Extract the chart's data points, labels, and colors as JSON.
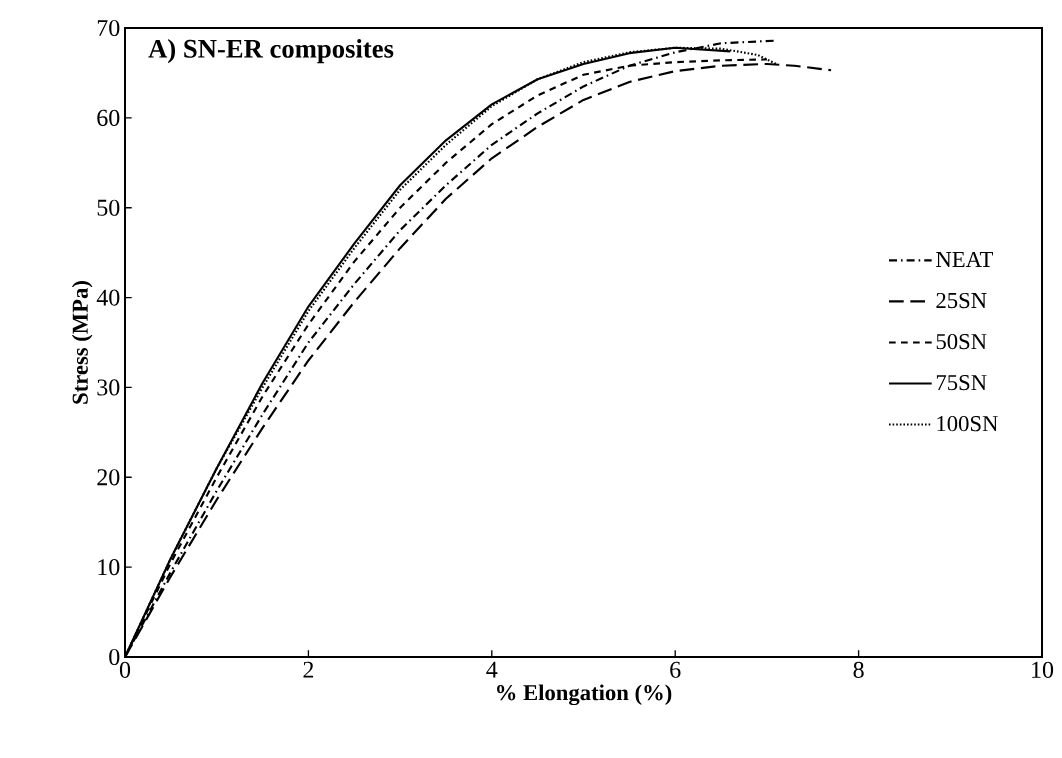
{
  "chart_data": {
    "type": "line",
    "title": "A) SN-ER composites",
    "xlabel": "% Elongation (%)",
    "ylabel": "Stress (MPa)",
    "xlim": [
      0,
      10
    ],
    "ylim": [
      0,
      70
    ],
    "xticks": [
      0,
      2,
      4,
      6,
      8,
      10
    ],
    "yticks": [
      0,
      10,
      20,
      30,
      40,
      50,
      60,
      70
    ],
    "grid": false,
    "legend": "right",
    "marker": "none",
    "series": [
      {
        "name": "NEAT",
        "color": "#000000",
        "line_style": "dashdot",
        "x": [
          0,
          0.5,
          1,
          1.5,
          2,
          2.5,
          3,
          3.5,
          4,
          4.5,
          5,
          5.5,
          6,
          6.5,
          7.1
        ],
        "values": [
          0,
          9.5,
          18.5,
          27,
          35,
          41.5,
          47.5,
          52.5,
          57,
          60.5,
          63.5,
          65.8,
          67.3,
          68.3,
          68.6
        ]
      },
      {
        "name": "25SN",
        "color": "#000000",
        "line_style": "longdash",
        "x": [
          0,
          0.5,
          1,
          1.5,
          2,
          2.5,
          3,
          3.5,
          4,
          4.5,
          5,
          5.5,
          6,
          6.5,
          7,
          7.3,
          7.7
        ],
        "values": [
          0,
          9,
          17.5,
          25.5,
          33,
          39.5,
          45.5,
          51,
          55.5,
          59,
          62,
          64,
          65.2,
          65.8,
          66,
          65.8,
          65.3
        ]
      },
      {
        "name": "50SN",
        "color": "#000000",
        "line_style": "dashed",
        "x": [
          0,
          0.5,
          1,
          1.5,
          2,
          2.5,
          3,
          3.5,
          4,
          4.5,
          5,
          5.5,
          6,
          6.5,
          7
        ],
        "values": [
          0,
          10.5,
          20,
          29,
          37,
          44,
          50,
          55,
          59.3,
          62.5,
          64.8,
          65.8,
          66.2,
          66.4,
          66.5
        ]
      },
      {
        "name": "75SN",
        "color": "#000000",
        "line_style": "solid",
        "x": [
          0,
          0.5,
          1,
          1.5,
          2,
          2.5,
          3,
          3.5,
          4,
          4.5,
          5,
          5.5,
          6,
          6.6
        ],
        "values": [
          0,
          11,
          21,
          30.5,
          39,
          46,
          52.5,
          57.5,
          61.5,
          64.3,
          66,
          67.2,
          67.8,
          67.4
        ]
      },
      {
        "name": "100SN",
        "color": "#000000",
        "line_style": "dotted",
        "x": [
          0,
          0.5,
          1,
          1.5,
          2,
          2.5,
          3,
          3.5,
          4,
          4.5,
          5,
          5.5,
          6,
          6.5,
          6.9,
          7.1
        ],
        "values": [
          0,
          11,
          21,
          30,
          38.5,
          45.5,
          52,
          57,
          61.3,
          64.3,
          66.2,
          67.3,
          67.8,
          67.7,
          67,
          66
        ]
      }
    ]
  }
}
